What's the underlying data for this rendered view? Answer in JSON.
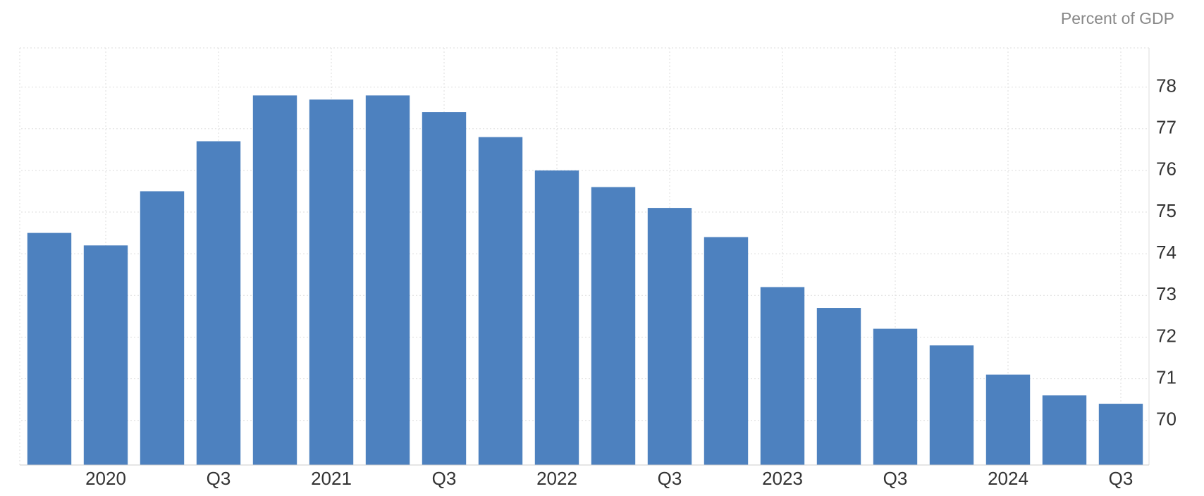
{
  "chart_data": {
    "type": "bar",
    "y_label": "Percent of GDP",
    "categories": [
      null,
      "2020",
      null,
      "Q3",
      null,
      "2021",
      null,
      "Q3",
      null,
      "2022",
      null,
      "Q3",
      null,
      "2023",
      null,
      "Q3",
      null,
      "2024",
      null,
      "Q3"
    ],
    "values": [
      74.5,
      74.2,
      75.5,
      76.7,
      77.8,
      77.7,
      77.8,
      77.4,
      76.8,
      76.0,
      75.6,
      75.1,
      74.4,
      73.2,
      72.7,
      72.2,
      71.8,
      71.1,
      70.6,
      70.4
    ],
    "color": "#4d81bf",
    "ylim": [
      68.93,
      78.94
    ],
    "yticks": [
      70,
      71,
      72,
      73,
      74,
      75,
      76,
      77,
      78
    ],
    "grid": true,
    "y_axis_side": "right"
  }
}
